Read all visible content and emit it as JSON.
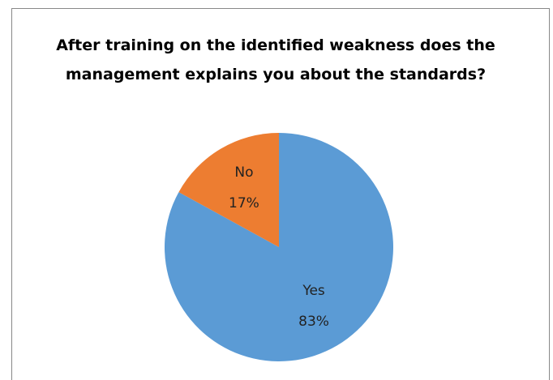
{
  "chart_data": {
    "type": "pie",
    "title": "After training on the identified weakness does the management explains you about the standards?",
    "categories": [
      "Yes",
      "No"
    ],
    "values": [
      83,
      17
    ],
    "value_labels": [
      "83%",
      "17%"
    ],
    "colors": [
      "#5b9bd5",
      "#ed7d31"
    ]
  }
}
